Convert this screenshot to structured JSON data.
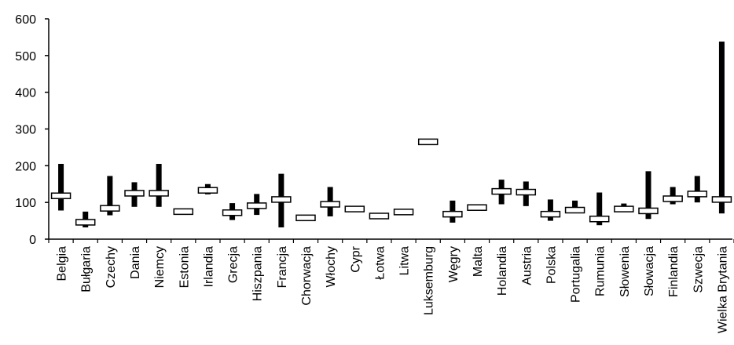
{
  "chart_data": {
    "type": "range-bar",
    "title": "",
    "xlabel": "",
    "ylabel": "",
    "ylim": [
      0,
      600
    ],
    "yticks": [
      0,
      100,
      200,
      300,
      400,
      500,
      600
    ],
    "grid": false,
    "categories": [
      "Belgia",
      "Bułgaria",
      "Czechy",
      "Dania",
      "Niemcy",
      "Estonia",
      "Irlandia",
      "Grecja",
      "Hiszpania",
      "Francja",
      "Chorwacja",
      "Włochy",
      "Cypr",
      "Łotwa",
      "Litwa",
      "Luksemburg",
      "Węgry",
      "Malta",
      "Holandia",
      "Austria",
      "Polska",
      "Portugalia",
      "Rumunia",
      "Słowenia",
      "Słowacja",
      "Finlandia",
      "Szwecja",
      "Wielka Brytania"
    ],
    "series": [
      {
        "role": "range",
        "low": [
          78,
          32,
          65,
          88,
          88,
          null,
          122,
          52,
          66,
          32,
          null,
          62,
          null,
          null,
          null,
          null,
          45,
          null,
          95,
          90,
          50,
          72,
          38,
          75,
          55,
          95,
          100,
          70
        ],
        "high": [
          205,
          75,
          172,
          155,
          205,
          null,
          150,
          98,
          123,
          178,
          null,
          142,
          null,
          null,
          null,
          null,
          105,
          null,
          162,
          157,
          108,
          105,
          127,
          97,
          185,
          142,
          172,
          538
        ]
      },
      {
        "role": "marker",
        "values": [
          118,
          46,
          84,
          125,
          125,
          75,
          133,
          72,
          91,
          108,
          58,
          95,
          82,
          63,
          74,
          265,
          68,
          86,
          130,
          128,
          68,
          79,
          55,
          82,
          77,
          110,
          123,
          108
        ]
      }
    ]
  }
}
